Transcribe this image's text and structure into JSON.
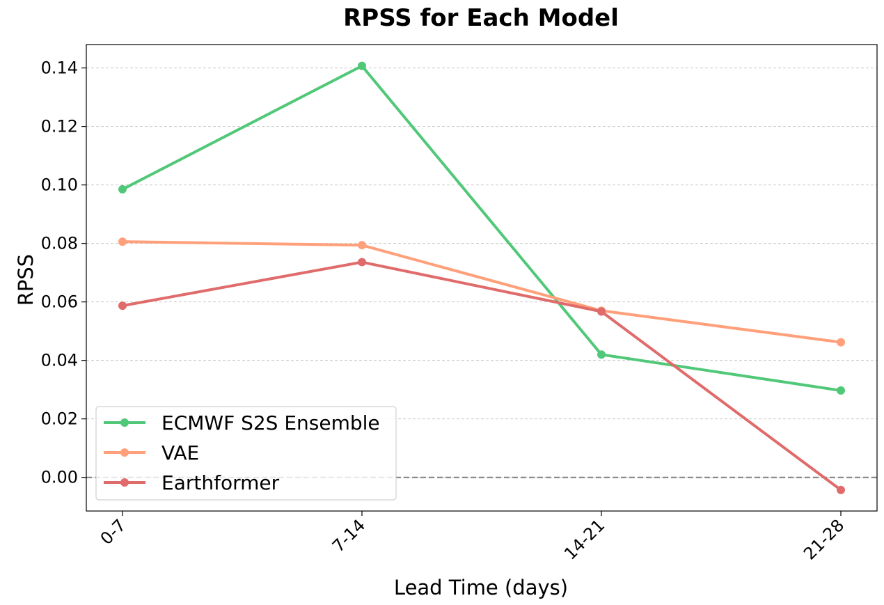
{
  "chart_data": {
    "type": "line",
    "title": "RPSS for Each Model",
    "xlabel": "Lead Time (days)",
    "ylabel": "RPSS",
    "categories": [
      "0-7",
      "7-14",
      "14-21",
      "21-28"
    ],
    "ylim": [
      -0.0115,
      0.148
    ],
    "yticks": [
      0.0,
      0.02,
      0.04,
      0.06,
      0.08,
      0.1,
      0.12,
      0.14
    ],
    "ytick_labels": [
      "0.00",
      "0.02",
      "0.04",
      "0.06",
      "0.08",
      "0.10",
      "0.12",
      "0.14"
    ],
    "grid": "horizontal dashed",
    "reference_line": 0,
    "legend_position": "lower-left",
    "series": [
      {
        "name": "ECMWF S2S Ensemble",
        "color": "#50c878",
        "values": [
          0.0985,
          0.1407,
          0.042,
          0.0297
        ]
      },
      {
        "name": "VAE",
        "color": "#ffa07a",
        "values": [
          0.0806,
          0.0794,
          0.057,
          0.0462
        ]
      },
      {
        "name": "Earthformer",
        "color": "#e06b6b",
        "values": [
          0.0587,
          0.0736,
          0.0567,
          -0.0043
        ]
      }
    ]
  }
}
